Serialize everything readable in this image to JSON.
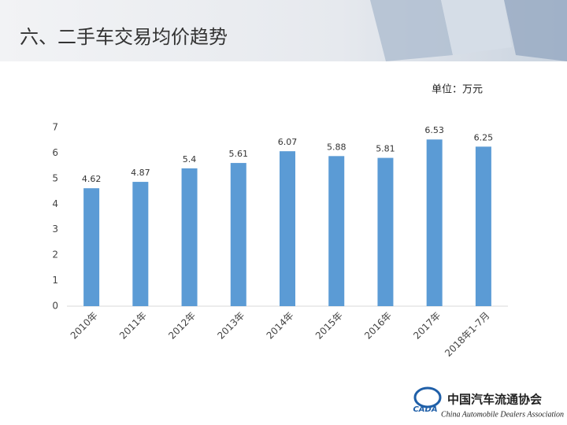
{
  "header": {
    "title": "六、二手车交易均价趋势"
  },
  "chart_data": {
    "type": "bar",
    "unit_label": "单位：万元",
    "categories": [
      "2010年",
      "2011年",
      "2012年",
      "2013年",
      "2014年",
      "2015年",
      "2016年",
      "2017年",
      "2018年1-7月"
    ],
    "values": [
      4.62,
      4.87,
      5.4,
      5.61,
      6.07,
      5.88,
      5.81,
      6.53,
      6.25
    ],
    "color": "#5b9bd5",
    "ylim": [
      0,
      7
    ],
    "yticks": [
      0,
      1,
      2,
      3,
      4,
      5,
      6,
      7
    ],
    "grid": false
  },
  "footer": {
    "logo_mark": "CADA",
    "org_name": "中国汽车流通协会",
    "org_name_en": "China Automobile Dealers Association"
  }
}
